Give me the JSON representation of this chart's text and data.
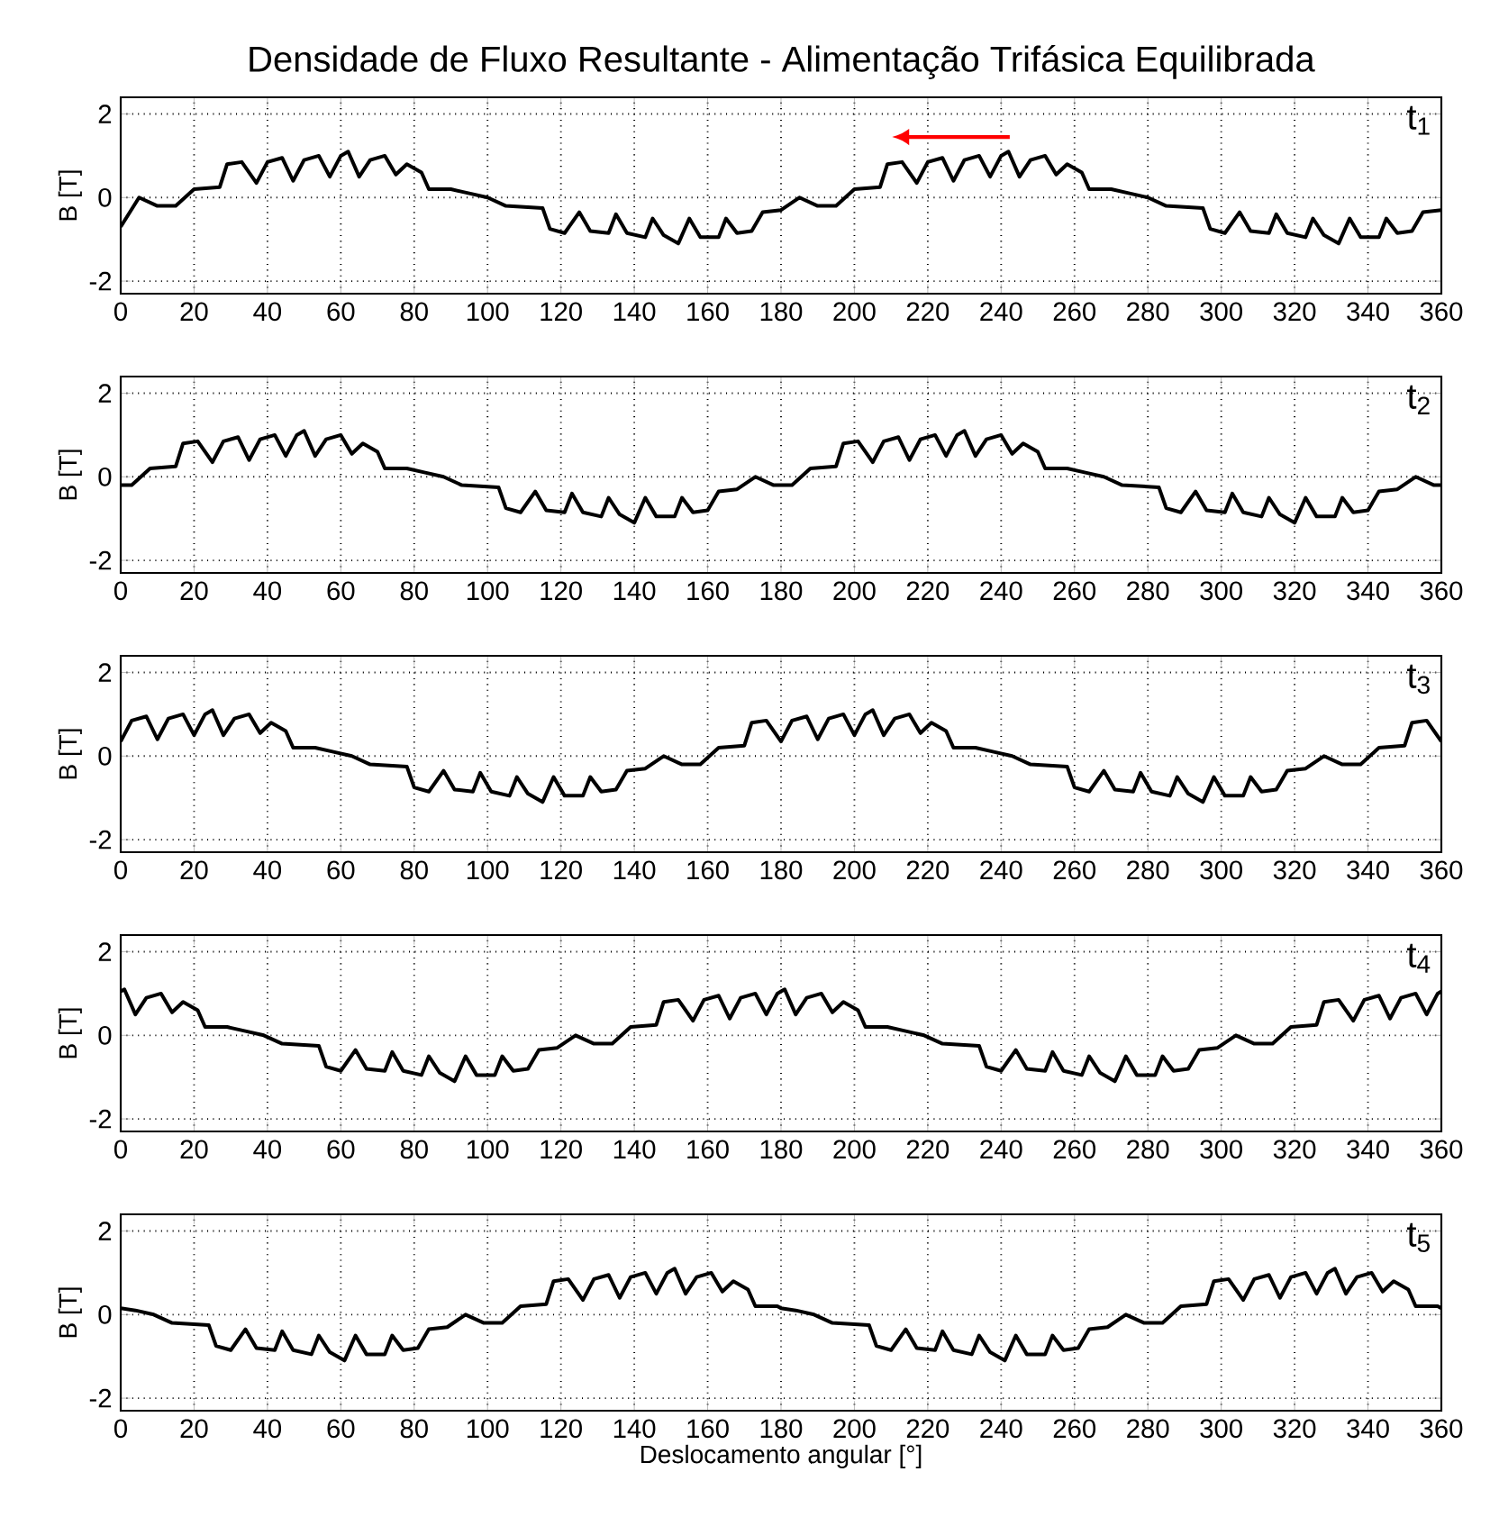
{
  "chart_data": [
    {
      "type": "line",
      "title": "Densidade de Fluxo Resultante - Alimentação Trifásica Equilibrada",
      "ylabel": "B [T]",
      "annotations": [
        "t$_{1}$"
      ],
      "xlim": [
        0,
        360
      ],
      "ylim": [
        -2.3,
        2.4
      ],
      "xticks": [
        0,
        20,
        40,
        60,
        80,
        100,
        120,
        140,
        160,
        180,
        200,
        220,
        240,
        260,
        280,
        300,
        320,
        340,
        360
      ],
      "yticks": [
        -2,
        0,
        2
      ],
      "grid": true,
      "series": [
        {
          "color": "#000000",
          "x": [
            0,
            5,
            10,
            15,
            20,
            27,
            29,
            33,
            37,
            40,
            44,
            47,
            50,
            54,
            57,
            60,
            62,
            65,
            68,
            72,
            75,
            78,
            82,
            84,
            90,
            95,
            100,
            105,
            115,
            117,
            121,
            125,
            128,
            133,
            135,
            138,
            143,
            145,
            148,
            152,
            155,
            158,
            163,
            165,
            168,
            172,
            175,
            180,
            185,
            190,
            195,
            200,
            207,
            209,
            213,
            217,
            220,
            224,
            227,
            230,
            234,
            237,
            240,
            242,
            245,
            248,
            252,
            255,
            258,
            262,
            264,
            270,
            275,
            280,
            285,
            295,
            297,
            301,
            305,
            308,
            313,
            315,
            318,
            323,
            325,
            328,
            332,
            335,
            338,
            343,
            345,
            348,
            352,
            355,
            360
          ],
          "values": [
            -0.7,
            0.0,
            -0.2,
            -0.2,
            0.2,
            0.25,
            0.8,
            0.85,
            0.35,
            0.85,
            0.95,
            0.4,
            0.9,
            1.0,
            0.5,
            1.0,
            1.1,
            0.5,
            0.9,
            1.0,
            0.55,
            0.8,
            0.6,
            0.2,
            0.2,
            0.1,
            0.0,
            -0.2,
            -0.25,
            -0.75,
            -0.85,
            -0.35,
            -0.8,
            -0.85,
            -0.4,
            -0.85,
            -0.95,
            -0.5,
            -0.9,
            -1.1,
            -0.5,
            -0.95,
            -0.95,
            -0.5,
            -0.85,
            -0.8,
            -0.35,
            -0.3,
            0.0,
            -0.2,
            -0.2,
            0.2,
            0.25,
            0.8,
            0.85,
            0.35,
            0.85,
            0.95,
            0.4,
            0.9,
            1.0,
            0.5,
            1.0,
            1.1,
            0.5,
            0.9,
            1.0,
            0.55,
            0.8,
            0.6,
            0.2,
            0.2,
            0.1,
            0.0,
            -0.2,
            -0.25,
            -0.75,
            -0.85,
            -0.35,
            -0.8,
            -0.85,
            -0.4,
            -0.85,
            -0.95,
            -0.5,
            -0.9,
            -1.1,
            -0.5,
            -0.95,
            -0.95,
            -0.5,
            -0.85,
            -0.8,
            -0.35,
            -0.3
          ]
        }
      ]
    },
    {
      "type": "line",
      "ylabel": "B [T]",
      "annotations": [
        "t$_{2}$"
      ],
      "xlim": [
        0,
        360
      ],
      "ylim": [
        -2.3,
        2.4
      ],
      "xticks": [
        0,
        20,
        40,
        60,
        80,
        100,
        120,
        140,
        160,
        180,
        200,
        220,
        240,
        260,
        280,
        300,
        320,
        340,
        360
      ],
      "yticks": [
        -2,
        0,
        2
      ],
      "grid": true,
      "series": [
        {
          "color": "#000000",
          "x": [
            0,
            3,
            8,
            15,
            17,
            21,
            25,
            28,
            32,
            35,
            38,
            42,
            45,
            48,
            50,
            53,
            56,
            60,
            63,
            66,
            70,
            72,
            78,
            83,
            88,
            93,
            103,
            105,
            109,
            113,
            116,
            121,
            123,
            126,
            131,
            133,
            136,
            140,
            143,
            146,
            151,
            153,
            156,
            160,
            163,
            168,
            173,
            178,
            180,
            183,
            188,
            195,
            197,
            201,
            205,
            208,
            212,
            215,
            218,
            222,
            225,
            228,
            230,
            233,
            236,
            240,
            243,
            246,
            250,
            252,
            258,
            263,
            268,
            273,
            283,
            285,
            289,
            293,
            296,
            301,
            303,
            306,
            311,
            313,
            316,
            320,
            323,
            326,
            331,
            333,
            336,
            340,
            343,
            348,
            353,
            358,
            360
          ],
          "values": [
            -0.2,
            -0.2,
            0.2,
            0.25,
            0.8,
            0.85,
            0.35,
            0.85,
            0.95,
            0.4,
            0.9,
            1.0,
            0.5,
            1.0,
            1.1,
            0.5,
            0.9,
            1.0,
            0.55,
            0.8,
            0.6,
            0.2,
            0.2,
            0.1,
            0.0,
            -0.2,
            -0.25,
            -0.75,
            -0.85,
            -0.35,
            -0.8,
            -0.85,
            -0.4,
            -0.85,
            -0.95,
            -0.5,
            -0.9,
            -1.1,
            -0.5,
            -0.95,
            -0.95,
            -0.5,
            -0.85,
            -0.8,
            -0.35,
            -0.3,
            0.0,
            -0.2,
            -0.2,
            -0.2,
            0.2,
            0.25,
            0.8,
            0.85,
            0.35,
            0.85,
            0.95,
            0.4,
            0.9,
            1.0,
            0.5,
            1.0,
            1.1,
            0.5,
            0.9,
            1.0,
            0.55,
            0.8,
            0.6,
            0.2,
            0.2,
            0.1,
            0.0,
            -0.2,
            -0.25,
            -0.75,
            -0.85,
            -0.35,
            -0.8,
            -0.85,
            -0.4,
            -0.85,
            -0.95,
            -0.5,
            -0.9,
            -1.1,
            -0.5,
            -0.95,
            -0.95,
            -0.5,
            -0.85,
            -0.8,
            -0.35,
            -0.3,
            0.0,
            -0.2,
            -0.2
          ]
        }
      ]
    },
    {
      "type": "line",
      "ylabel": "B [T]",
      "annotations": [
        "t$_{3}$"
      ],
      "xlim": [
        0,
        360
      ],
      "ylim": [
        -2.3,
        2.4
      ],
      "xticks": [
        0,
        20,
        40,
        60,
        80,
        100,
        120,
        140,
        160,
        180,
        200,
        220,
        240,
        260,
        280,
        300,
        320,
        340,
        360
      ],
      "yticks": [
        -2,
        0,
        2
      ],
      "grid": true,
      "series": [
        {
          "color": "#000000",
          "x": [
            0,
            3,
            7,
            10,
            13,
            17,
            20,
            23,
            25,
            28,
            31,
            35,
            38,
            41,
            45,
            47,
            53,
            58,
            63,
            68,
            78,
            80,
            84,
            88,
            91,
            96,
            98,
            101,
            106,
            108,
            111,
            115,
            118,
            121,
            126,
            128,
            131,
            135,
            138,
            143,
            148,
            153,
            158,
            163,
            170,
            172,
            176,
            180,
            183,
            187,
            190,
            193,
            197,
            200,
            203,
            205,
            208,
            211,
            215,
            218,
            221,
            225,
            227,
            233,
            238,
            243,
            248,
            258,
            260,
            264,
            268,
            271,
            276,
            278,
            281,
            286,
            288,
            291,
            295,
            298,
            301,
            306,
            308,
            311,
            315,
            318,
            323,
            328,
            333,
            338,
            343,
            350,
            352,
            356,
            360
          ],
          "values": [
            0.35,
            0.85,
            0.95,
            0.4,
            0.9,
            1.0,
            0.5,
            1.0,
            1.1,
            0.5,
            0.9,
            1.0,
            0.55,
            0.8,
            0.6,
            0.2,
            0.2,
            0.1,
            0.0,
            -0.2,
            -0.25,
            -0.75,
            -0.85,
            -0.35,
            -0.8,
            -0.85,
            -0.4,
            -0.85,
            -0.95,
            -0.5,
            -0.9,
            -1.1,
            -0.5,
            -0.95,
            -0.95,
            -0.5,
            -0.85,
            -0.8,
            -0.35,
            -0.3,
            0.0,
            -0.2,
            -0.2,
            0.2,
            0.25,
            0.8,
            0.85,
            0.35,
            0.85,
            0.95,
            0.4,
            0.9,
            1.0,
            0.5,
            1.0,
            1.1,
            0.5,
            0.9,
            1.0,
            0.55,
            0.8,
            0.6,
            0.2,
            0.2,
            0.1,
            0.0,
            -0.2,
            -0.25,
            -0.75,
            -0.85,
            -0.35,
            -0.8,
            -0.85,
            -0.4,
            -0.85,
            -0.95,
            -0.5,
            -0.9,
            -1.1,
            -0.5,
            -0.95,
            -0.95,
            -0.5,
            -0.85,
            -0.8,
            -0.35,
            -0.3,
            0.0,
            -0.2,
            -0.2,
            0.2,
            0.25,
            0.8,
            0.85,
            0.35
          ]
        }
      ]
    },
    {
      "type": "line",
      "ylabel": "B [T]",
      "annotations": [
        "t$_{4}$"
      ],
      "xlim": [
        0,
        360
      ],
      "ylim": [
        -2.3,
        2.4
      ],
      "xticks": [
        0,
        20,
        40,
        60,
        80,
        100,
        120,
        140,
        160,
        180,
        200,
        220,
        240,
        260,
        280,
        300,
        320,
        340,
        360
      ],
      "yticks": [
        -2,
        0,
        2
      ],
      "grid": true,
      "series": [
        {
          "color": "#000000",
          "x": [
            0,
            1,
            4,
            7,
            11,
            14,
            17,
            21,
            23,
            29,
            34,
            39,
            44,
            54,
            56,
            60,
            64,
            67,
            72,
            74,
            77,
            82,
            84,
            87,
            91,
            94,
            97,
            102,
            104,
            107,
            111,
            114,
            119,
            124,
            129,
            134,
            139,
            146,
            148,
            152,
            156,
            159,
            163,
            166,
            169,
            173,
            176,
            179,
            180,
            181,
            184,
            187,
            191,
            194,
            197,
            201,
            203,
            209,
            214,
            219,
            224,
            234,
            236,
            240,
            244,
            247,
            252,
            254,
            257,
            262,
            264,
            267,
            271,
            274,
            277,
            282,
            284,
            287,
            291,
            294,
            299,
            304,
            309,
            314,
            319,
            326,
            328,
            332,
            336,
            339,
            343,
            346,
            349,
            353,
            356,
            359,
            360
          ],
          "values": [
            1.05,
            1.1,
            0.5,
            0.9,
            1.0,
            0.55,
            0.8,
            0.6,
            0.2,
            0.2,
            0.1,
            0.0,
            -0.2,
            -0.25,
            -0.75,
            -0.85,
            -0.35,
            -0.8,
            -0.85,
            -0.4,
            -0.85,
            -0.95,
            -0.5,
            -0.9,
            -1.1,
            -0.5,
            -0.95,
            -0.95,
            -0.5,
            -0.85,
            -0.8,
            -0.35,
            -0.3,
            0.0,
            -0.2,
            -0.2,
            0.2,
            0.25,
            0.8,
            0.85,
            0.35,
            0.85,
            0.95,
            0.4,
            0.9,
            1.0,
            0.5,
            1.0,
            1.05,
            1.1,
            0.5,
            0.9,
            1.0,
            0.55,
            0.8,
            0.6,
            0.2,
            0.2,
            0.1,
            0.0,
            -0.2,
            -0.25,
            -0.75,
            -0.85,
            -0.35,
            -0.8,
            -0.85,
            -0.4,
            -0.85,
            -0.95,
            -0.5,
            -0.9,
            -1.1,
            -0.5,
            -0.95,
            -0.95,
            -0.5,
            -0.85,
            -0.8,
            -0.35,
            -0.3,
            0.0,
            -0.2,
            -0.2,
            0.2,
            0.25,
            0.8,
            0.85,
            0.35,
            0.85,
            0.95,
            0.4,
            0.9,
            1.0,
            0.5,
            1.0,
            1.05
          ]
        }
      ]
    },
    {
      "type": "line",
      "xlabel": "Deslocamento angular [°]",
      "ylabel": "B [T]",
      "annotations": [
        "t$_{5}$"
      ],
      "xlim": [
        0,
        360
      ],
      "ylim": [
        -2.3,
        2.4
      ],
      "xticks": [
        0,
        20,
        40,
        60,
        80,
        100,
        120,
        140,
        160,
        180,
        200,
        220,
        240,
        260,
        280,
        300,
        320,
        340,
        360
      ],
      "yticks": [
        -2,
        0,
        2
      ],
      "grid": true,
      "series": [
        {
          "color": "#000000",
          "x": [
            0,
            4,
            9,
            14,
            24,
            26,
            30,
            34,
            37,
            42,
            44,
            47,
            52,
            54,
            57,
            61,
            64,
            67,
            72,
            74,
            77,
            81,
            84,
            89,
            94,
            99,
            104,
            109,
            116,
            118,
            122,
            126,
            129,
            133,
            136,
            139,
            143,
            146,
            149,
            151,
            154,
            157,
            161,
            164,
            167,
            171,
            173,
            179,
            180,
            184,
            189,
            194,
            204,
            206,
            210,
            214,
            217,
            222,
            224,
            227,
            232,
            234,
            237,
            241,
            244,
            247,
            252,
            254,
            257,
            261,
            264,
            269,
            274,
            279,
            284,
            289,
            296,
            298,
            302,
            306,
            309,
            313,
            316,
            319,
            323,
            326,
            329,
            331,
            334,
            337,
            341,
            344,
            347,
            351,
            353,
            359,
            360
          ],
          "values": [
            0.15,
            0.1,
            0.0,
            -0.2,
            -0.25,
            -0.75,
            -0.85,
            -0.35,
            -0.8,
            -0.85,
            -0.4,
            -0.85,
            -0.95,
            -0.5,
            -0.9,
            -1.1,
            -0.5,
            -0.95,
            -0.95,
            -0.5,
            -0.85,
            -0.8,
            -0.35,
            -0.3,
            0.0,
            -0.2,
            -0.2,
            0.2,
            0.25,
            0.8,
            0.85,
            0.35,
            0.85,
            0.95,
            0.4,
            0.9,
            1.0,
            0.5,
            1.0,
            1.1,
            0.5,
            0.9,
            1.0,
            0.55,
            0.8,
            0.6,
            0.2,
            0.2,
            0.15,
            0.1,
            0.0,
            -0.2,
            -0.25,
            -0.75,
            -0.85,
            -0.35,
            -0.8,
            -0.85,
            -0.4,
            -0.85,
            -0.95,
            -0.5,
            -0.9,
            -1.1,
            -0.5,
            -0.95,
            -0.95,
            -0.5,
            -0.85,
            -0.8,
            -0.35,
            -0.3,
            0.0,
            -0.2,
            -0.2,
            0.2,
            0.25,
            0.8,
            0.85,
            0.35,
            0.85,
            0.95,
            0.4,
            0.9,
            1.0,
            0.5,
            1.0,
            1.1,
            0.5,
            0.9,
            1.0,
            0.55,
            0.8,
            0.6,
            0.2,
            0.2,
            0.15
          ]
        }
      ]
    }
  ]
}
